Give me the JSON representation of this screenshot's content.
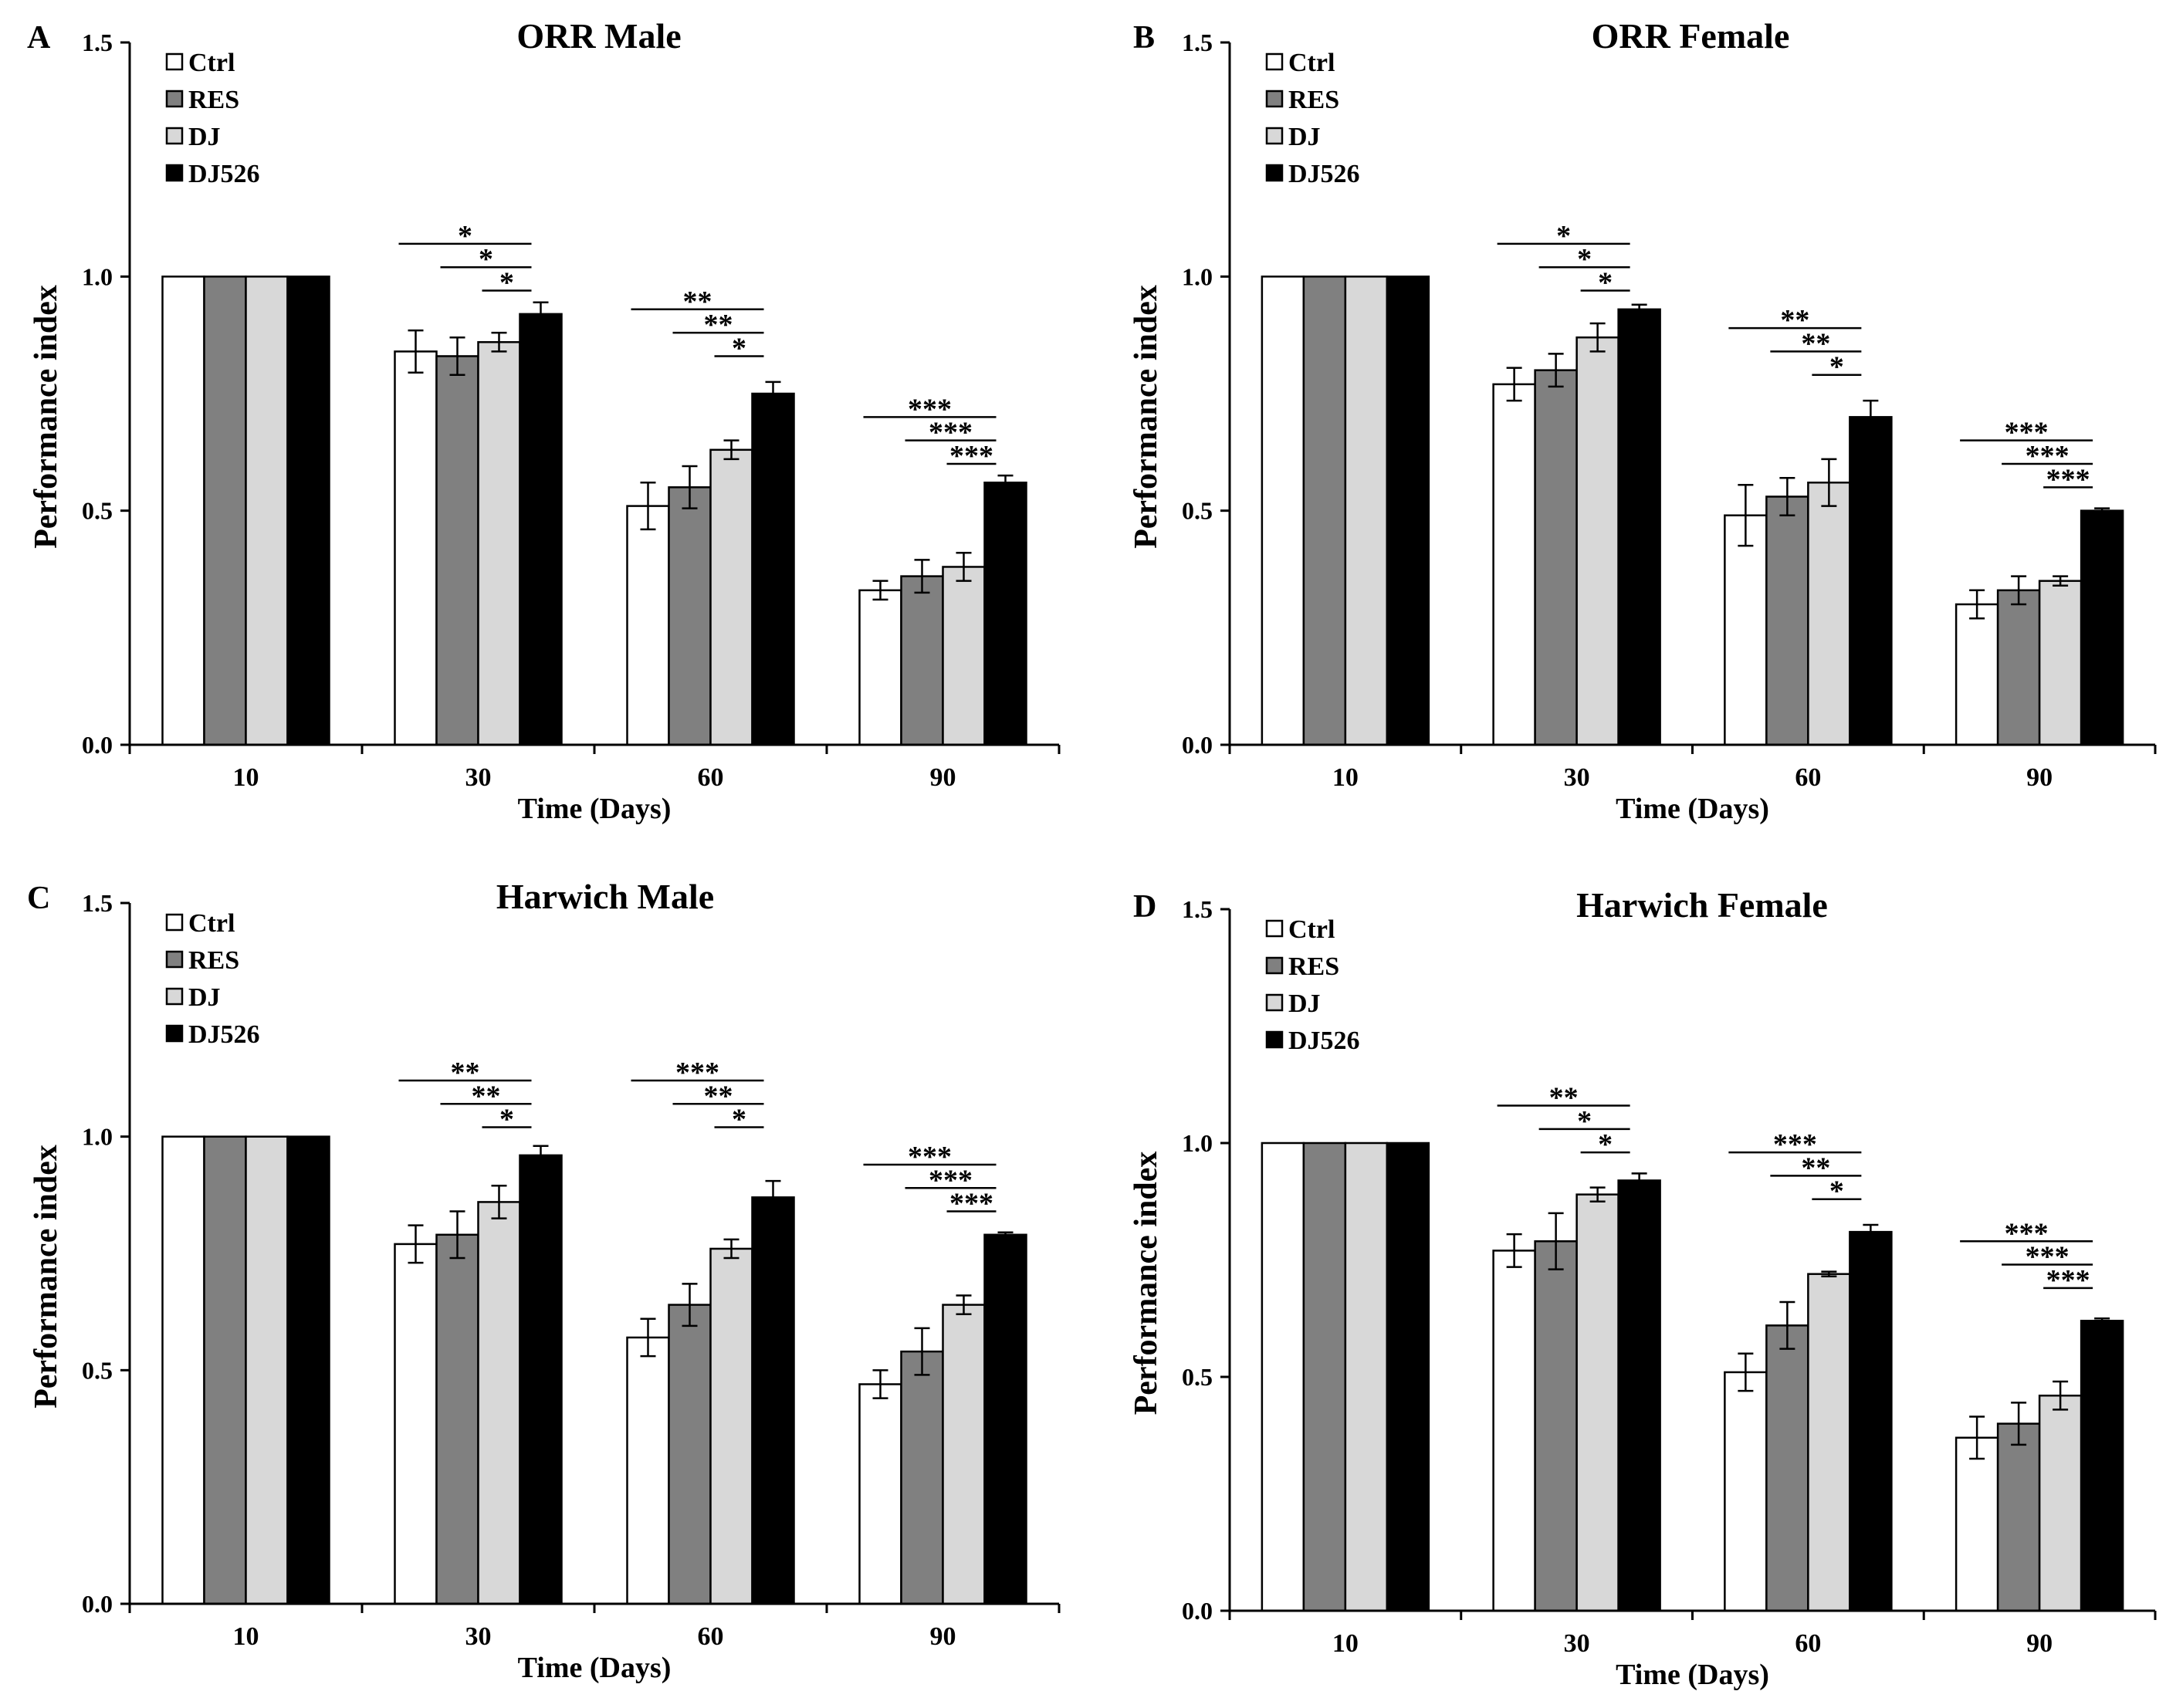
{
  "colors": {
    "Ctrl": "#ffffff",
    "RES": "#808080",
    "DJ": "#d8d8d8",
    "DJ526": "#000000",
    "axis": "#000000"
  },
  "chart_data": [
    {
      "panel_letter": "A",
      "type": "bar",
      "title": "ORR Male",
      "xlabel": "Time (Days)",
      "ylabel": "Performance index",
      "ylim": [
        0,
        1.5
      ],
      "yticks": [
        "0.0",
        "0.5",
        "1.0",
        "1.5"
      ],
      "categories": [
        "10",
        "30",
        "60",
        "90"
      ],
      "legend_position": "top-left",
      "series": [
        {
          "name": "Ctrl",
          "values": [
            1.0,
            0.84,
            0.51,
            0.33
          ],
          "errors": [
            0,
            0.045,
            0.05,
            0.02
          ]
        },
        {
          "name": "RES",
          "values": [
            1.0,
            0.83,
            0.55,
            0.36
          ],
          "errors": [
            0,
            0.04,
            0.045,
            0.035
          ]
        },
        {
          "name": "DJ",
          "values": [
            1.0,
            0.86,
            0.63,
            0.38
          ],
          "errors": [
            0,
            0.02,
            0.02,
            0.03
          ]
        },
        {
          "name": "DJ526",
          "values": [
            1.0,
            0.92,
            0.75,
            0.56
          ],
          "errors": [
            0,
            0.025,
            0.025,
            0.015
          ]
        }
      ],
      "significance": [
        {
          "category": "30",
          "label": "*",
          "from": "Ctrl",
          "y": 1.07
        },
        {
          "category": "30",
          "label": "*",
          "from": "RES",
          "y": 1.02
        },
        {
          "category": "30",
          "label": "*",
          "from": "DJ",
          "y": 0.97
        },
        {
          "category": "60",
          "label": "**",
          "from": "Ctrl",
          "y": 0.93
        },
        {
          "category": "60",
          "label": "**",
          "from": "RES",
          "y": 0.88
        },
        {
          "category": "60",
          "label": "*",
          "from": "DJ",
          "y": 0.83
        },
        {
          "category": "90",
          "label": "***",
          "from": "Ctrl",
          "y": 0.7
        },
        {
          "category": "90",
          "label": "***",
          "from": "RES",
          "y": 0.65
        },
        {
          "category": "90",
          "label": "***",
          "from": "DJ",
          "y": 0.6
        }
      ]
    },
    {
      "panel_letter": "B",
      "type": "bar",
      "title": "ORR Female",
      "xlabel": "Time (Days)",
      "ylabel": "Performance index",
      "ylim": [
        0,
        1.5
      ],
      "yticks": [
        "0.0",
        "0.5",
        "1.0",
        "1.5"
      ],
      "categories": [
        "10",
        "30",
        "60",
        "90"
      ],
      "legend_position": "top-left",
      "series": [
        {
          "name": "Ctrl",
          "values": [
            1.0,
            0.77,
            0.49,
            0.3
          ],
          "errors": [
            0,
            0.035,
            0.065,
            0.03
          ]
        },
        {
          "name": "RES",
          "values": [
            1.0,
            0.8,
            0.53,
            0.33
          ],
          "errors": [
            0,
            0.035,
            0.04,
            0.03
          ]
        },
        {
          "name": "DJ",
          "values": [
            1.0,
            0.87,
            0.56,
            0.35
          ],
          "errors": [
            0,
            0.03,
            0.05,
            0.01
          ]
        },
        {
          "name": "DJ526",
          "values": [
            1.0,
            0.93,
            0.7,
            0.5
          ],
          "errors": [
            0,
            0.01,
            0.035,
            0.005
          ]
        }
      ],
      "significance": [
        {
          "category": "30",
          "label": "*",
          "from": "Ctrl",
          "y": 1.07
        },
        {
          "category": "30",
          "label": "*",
          "from": "RES",
          "y": 1.02
        },
        {
          "category": "30",
          "label": "*",
          "from": "DJ",
          "y": 0.97
        },
        {
          "category": "60",
          "label": "**",
          "from": "Ctrl",
          "y": 0.89
        },
        {
          "category": "60",
          "label": "**",
          "from": "RES",
          "y": 0.84
        },
        {
          "category": "60",
          "label": "*",
          "from": "DJ",
          "y": 0.79
        },
        {
          "category": "90",
          "label": "***",
          "from": "Ctrl",
          "y": 0.65
        },
        {
          "category": "90",
          "label": "***",
          "from": "RES",
          "y": 0.6
        },
        {
          "category": "90",
          "label": "***",
          "from": "DJ",
          "y": 0.55
        }
      ]
    },
    {
      "panel_letter": "C",
      "type": "bar",
      "title": "Harwich  Male",
      "xlabel": "Time (Days)",
      "ylabel": "Performance index",
      "ylim": [
        0,
        1.5
      ],
      "yticks": [
        "0.0",
        "0.5",
        "1.0",
        "1.5"
      ],
      "categories": [
        "10",
        "30",
        "60",
        "90"
      ],
      "legend_position": "top-left",
      "series": [
        {
          "name": "Ctrl",
          "values": [
            1.0,
            0.77,
            0.57,
            0.47
          ],
          "errors": [
            0,
            0.04,
            0.04,
            0.03
          ]
        },
        {
          "name": "RES",
          "values": [
            1.0,
            0.79,
            0.64,
            0.54
          ],
          "errors": [
            0,
            0.05,
            0.045,
            0.05
          ]
        },
        {
          "name": "DJ",
          "values": [
            1.0,
            0.86,
            0.76,
            0.64
          ],
          "errors": [
            0,
            0.035,
            0.02,
            0.02
          ]
        },
        {
          "name": "DJ526",
          "values": [
            1.0,
            0.96,
            0.87,
            0.79
          ],
          "errors": [
            0,
            0.02,
            0.035,
            0.005
          ]
        }
      ],
      "significance": [
        {
          "category": "30",
          "label": "**",
          "from": "Ctrl",
          "y": 1.12
        },
        {
          "category": "30",
          "label": "**",
          "from": "RES",
          "y": 1.07
        },
        {
          "category": "30",
          "label": "*",
          "from": "DJ",
          "y": 1.02
        },
        {
          "category": "60",
          "label": "***",
          "from": "Ctrl",
          "y": 1.12
        },
        {
          "category": "60",
          "label": "**",
          "from": "RES",
          "y": 1.07
        },
        {
          "category": "60",
          "label": "*",
          "from": "DJ",
          "y": 1.02
        },
        {
          "category": "90",
          "label": "***",
          "from": "Ctrl",
          "y": 0.94
        },
        {
          "category": "90",
          "label": "***",
          "from": "RES",
          "y": 0.89
        },
        {
          "category": "90",
          "label": "***",
          "from": "DJ",
          "y": 0.84
        }
      ]
    },
    {
      "panel_letter": "D",
      "type": "bar",
      "title": "Harwich  Female",
      "xlabel": "Time (Days)",
      "ylabel": "Performance index",
      "ylim": [
        0,
        1.5
      ],
      "yticks": [
        "0.0",
        "0.5",
        "1.0",
        "1.5"
      ],
      "categories": [
        "10",
        "30",
        "60",
        "90"
      ],
      "legend_position": "top-left",
      "series": [
        {
          "name": "Ctrl",
          "values": [
            1.0,
            0.77,
            0.51,
            0.37
          ],
          "errors": [
            0,
            0.035,
            0.04,
            0.045
          ]
        },
        {
          "name": "RES",
          "values": [
            1.0,
            0.79,
            0.61,
            0.4
          ],
          "errors": [
            0,
            0.06,
            0.05,
            0.045
          ]
        },
        {
          "name": "DJ",
          "values": [
            1.0,
            0.89,
            0.72,
            0.46
          ],
          "errors": [
            0,
            0.015,
            0.005,
            0.03
          ]
        },
        {
          "name": "DJ526",
          "values": [
            1.0,
            0.92,
            0.81,
            0.62
          ],
          "errors": [
            0,
            0.015,
            0.015,
            0.005
          ]
        }
      ],
      "significance": [
        {
          "category": "30",
          "label": "**",
          "from": "Ctrl",
          "y": 1.08
        },
        {
          "category": "30",
          "label": "*",
          "from": "RES",
          "y": 1.03
        },
        {
          "category": "30",
          "label": "*",
          "from": "DJ",
          "y": 0.98
        },
        {
          "category": "60",
          "label": "***",
          "from": "Ctrl",
          "y": 0.98
        },
        {
          "category": "60",
          "label": "**",
          "from": "RES",
          "y": 0.93
        },
        {
          "category": "60",
          "label": "*",
          "from": "DJ",
          "y": 0.88
        },
        {
          "category": "90",
          "label": "***",
          "from": "Ctrl",
          "y": 0.79
        },
        {
          "category": "90",
          "label": "***",
          "from": "RES",
          "y": 0.74
        },
        {
          "category": "90",
          "label": "***",
          "from": "DJ",
          "y": 0.69
        }
      ]
    }
  ]
}
